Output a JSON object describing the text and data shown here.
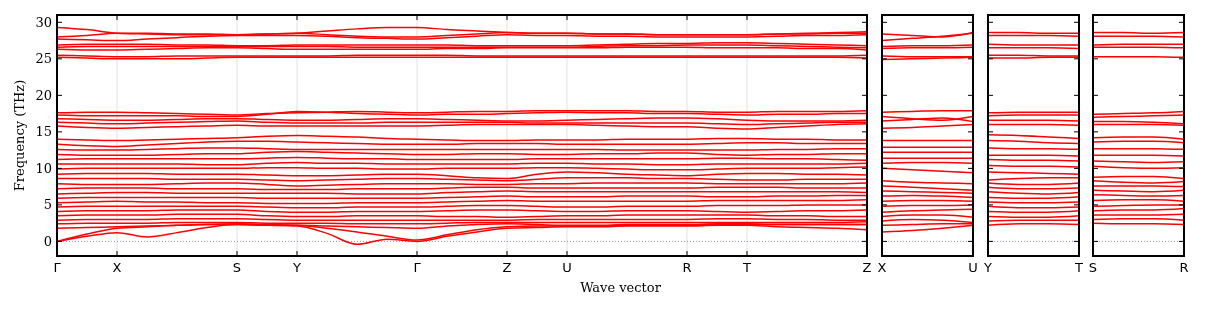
{
  "chart_data": [
    {
      "type": "line",
      "xlabel": "Wave vector",
      "ylabel": "Frequency (THz)",
      "color": "#ff0000",
      "grid": "x",
      "line_style": "solid",
      "ylim": [
        -2,
        31
      ],
      "yticks": [
        0,
        5,
        10,
        15,
        20,
        25,
        30
      ],
      "categories": [
        "Γ",
        null,
        "X",
        null,
        null,
        null,
        "S",
        null,
        "Y",
        null,
        null,
        null,
        "Γ",
        null,
        null,
        "Z",
        null,
        "U",
        null,
        null,
        null,
        "R",
        null,
        "T",
        null,
        null,
        null,
        "Z"
      ],
      "ref_lines": [
        {
          "axis": "y",
          "value": 0,
          "color": "#7777cc",
          "line_style": "dotted"
        }
      ],
      "series": [
        {
          "values": [
            29.3,
            29.0,
            28.5,
            28.4,
            28.3,
            28.3,
            28.3,
            28.4,
            28.5,
            28.8,
            29.1,
            29.3,
            29.3,
            29.0,
            28.8,
            28.6,
            28.5,
            28.5,
            28.4,
            28.4,
            28.3,
            28.3,
            28.3,
            28.3,
            28.4,
            28.5,
            28.6,
            28.7
          ]
        },
        {
          "values": [
            28.0,
            28.2,
            28.5,
            28.5,
            28.4,
            28.4,
            28.3,
            28.4,
            28.5,
            28.3,
            28.1,
            28.0,
            28.0,
            28.2,
            28.4,
            28.6,
            28.5,
            28.5,
            28.4,
            28.4,
            28.3,
            28.3,
            28.3,
            28.3,
            28.4,
            28.4,
            28.5,
            28.5
          ]
        },
        {
          "values": [
            27.7,
            27.6,
            27.5,
            27.7,
            27.9,
            28.1,
            28.2,
            28.2,
            28.2,
            28.1,
            27.9,
            27.8,
            27.7,
            27.9,
            28.1,
            28.3,
            28.2,
            28.2,
            28.1,
            28.1,
            28.0,
            28.0,
            28.0,
            28.0,
            28.1,
            28.2,
            28.2,
            28.3
          ]
        },
        {
          "values": [
            26.9,
            27.0,
            27.0,
            27.0,
            26.9,
            26.9,
            26.8,
            26.8,
            26.9,
            26.9,
            26.9,
            26.9,
            26.9,
            26.9,
            26.8,
            26.8,
            26.8,
            26.8,
            26.9,
            27.0,
            27.1,
            27.1,
            27.2,
            27.2,
            27.1,
            27.0,
            26.9,
            26.8
          ]
        },
        {
          "values": [
            26.6,
            26.7,
            26.7,
            26.7,
            26.7,
            26.7,
            26.7,
            26.7,
            26.7,
            26.7,
            26.6,
            26.6,
            26.6,
            26.6,
            26.6,
            26.6,
            26.6,
            26.6,
            26.7,
            26.8,
            26.8,
            26.9,
            26.9,
            26.9,
            26.8,
            26.7,
            26.6,
            26.5
          ]
        },
        {
          "values": [
            26.3,
            26.2,
            26.2,
            26.3,
            26.4,
            26.5,
            26.5,
            26.4,
            26.3,
            26.3,
            26.3,
            26.3,
            26.3,
            26.4,
            26.4,
            26.5,
            26.5,
            26.5,
            26.5,
            26.6,
            26.6,
            26.6,
            26.5,
            26.5,
            26.5,
            26.4,
            26.4,
            26.2
          ]
        },
        {
          "values": [
            25.5,
            25.4,
            25.3,
            25.3,
            25.4,
            25.4,
            25.4,
            25.4,
            25.4,
            25.4,
            25.5,
            25.5,
            25.5,
            25.5,
            25.4,
            25.4,
            25.4,
            25.4,
            25.4,
            25.4,
            25.4,
            25.4,
            25.4,
            25.4,
            25.4,
            25.4,
            25.4,
            25.5
          ]
        },
        {
          "values": [
            25.2,
            25.1,
            25.0,
            25.0,
            25.0,
            25.1,
            25.2,
            25.2,
            25.2,
            25.2,
            25.2,
            25.2,
            25.2,
            25.2,
            25.2,
            25.2,
            25.2,
            25.2,
            25.2,
            25.2,
            25.2,
            25.2,
            25.2,
            25.2,
            25.2,
            25.2,
            25.2,
            25.1
          ]
        },
        {
          "values": [
            17.6,
            17.7,
            17.7,
            17.6,
            17.5,
            17.4,
            17.3,
            17.5,
            17.6,
            17.7,
            17.8,
            17.7,
            17.6,
            17.7,
            17.8,
            17.8,
            17.9,
            17.9,
            17.9,
            17.9,
            17.8,
            17.8,
            17.7,
            17.7,
            17.8,
            17.8,
            17.8,
            17.9
          ]
        },
        {
          "values": [
            17.3,
            17.2,
            17.2,
            17.2,
            17.2,
            17.1,
            17.1,
            17.4,
            17.8,
            17.7,
            17.5,
            17.4,
            17.3,
            17.4,
            17.4,
            17.5,
            17.6,
            17.7,
            17.6,
            17.6,
            17.5,
            17.5,
            17.4,
            17.3,
            17.4,
            17.4,
            17.5,
            17.5
          ]
        },
        {
          "values": [
            16.8,
            16.7,
            16.6,
            16.6,
            16.7,
            16.8,
            16.8,
            16.7,
            16.6,
            16.6,
            16.7,
            16.8,
            16.8,
            16.7,
            16.6,
            16.5,
            16.5,
            16.6,
            16.7,
            16.8,
            16.9,
            16.9,
            16.8,
            16.6,
            16.5,
            16.5,
            16.5,
            16.6
          ]
        },
        {
          "values": [
            16.3,
            16.2,
            16.1,
            16.2,
            16.3,
            16.4,
            16.5,
            16.3,
            16.2,
            16.2,
            16.2,
            16.3,
            16.3,
            16.3,
            16.3,
            16.3,
            16.2,
            16.2,
            16.2,
            16.2,
            16.2,
            16.2,
            16.1,
            16.0,
            16.1,
            16.2,
            16.3,
            16.3
          ]
        },
        {
          "values": [
            15.8,
            15.6,
            15.5,
            15.6,
            15.7,
            15.8,
            15.9,
            15.8,
            15.8,
            15.8,
            15.8,
            15.8,
            15.8,
            15.9,
            16.0,
            16.0,
            16.0,
            16.0,
            15.9,
            15.8,
            15.7,
            15.7,
            15.5,
            15.4,
            15.6,
            15.8,
            16.0,
            16.1
          ]
        },
        {
          "values": [
            14.0,
            13.9,
            13.8,
            13.9,
            14.0,
            14.1,
            14.2,
            14.4,
            14.5,
            14.4,
            14.3,
            14.1,
            14.0,
            13.9,
            13.8,
            13.8,
            13.9,
            13.9,
            13.9,
            14.0,
            14.0,
            14.0,
            14.1,
            14.1,
            14.0,
            14.0,
            13.9,
            13.9
          ]
        },
        {
          "values": [
            13.3,
            13.1,
            13.0,
            13.2,
            13.4,
            13.6,
            13.7,
            13.7,
            13.6,
            13.5,
            13.4,
            13.3,
            13.3,
            13.3,
            13.4,
            13.4,
            13.4,
            13.3,
            13.3,
            13.3,
            13.3,
            13.3,
            13.4,
            13.5,
            13.5,
            13.4,
            13.4,
            13.4
          ]
        },
        {
          "values": [
            12.6,
            12.5,
            12.5,
            12.6,
            12.7,
            12.8,
            12.8,
            12.7,
            12.6,
            12.6,
            12.6,
            12.6,
            12.6,
            12.6,
            12.6,
            12.6,
            12.6,
            12.6,
            12.6,
            12.5,
            12.5,
            12.5,
            12.5,
            12.5,
            12.6,
            12.6,
            12.7,
            12.7
          ]
        },
        {
          "values": [
            11.9,
            11.8,
            11.8,
            11.8,
            11.9,
            12.0,
            12.0,
            12.2,
            12.3,
            12.2,
            12.1,
            12.0,
            11.9,
            11.9,
            12.0,
            12.0,
            11.9,
            11.9,
            12.0,
            12.0,
            12.1,
            12.1,
            11.9,
            11.8,
            11.9,
            11.9,
            12.0,
            12.0
          ]
        },
        {
          "values": [
            11.2,
            11.3,
            11.3,
            11.3,
            11.3,
            11.3,
            11.3,
            11.4,
            11.5,
            11.4,
            11.3,
            11.3,
            11.2,
            11.2,
            11.2,
            11.2,
            11.3,
            11.3,
            11.3,
            11.3,
            11.3,
            11.3,
            11.4,
            11.4,
            11.3,
            11.3,
            11.2,
            11.1
          ]
        },
        {
          "values": [
            10.6,
            10.6,
            10.6,
            10.6,
            10.6,
            10.5,
            10.5,
            10.7,
            10.8,
            10.7,
            10.7,
            10.6,
            10.6,
            10.6,
            10.6,
            10.6,
            10.7,
            10.7,
            10.6,
            10.6,
            10.5,
            10.5,
            10.6,
            10.6,
            10.6,
            10.6,
            10.6,
            10.7
          ]
        },
        {
          "values": [
            9.9,
            10.0,
            10.0,
            10.0,
            10.0,
            10.0,
            10.0,
            10.1,
            10.1,
            10.0,
            10.0,
            9.9,
            9.9,
            10.0,
            10.0,
            10.0,
            10.1,
            10.1,
            10.0,
            9.9,
            9.8,
            9.8,
            9.9,
            10.0,
            10.0,
            10.0,
            10.1,
            10.2
          ]
        },
        {
          "values": [
            9.2,
            9.3,
            9.3,
            9.3,
            9.2,
            9.2,
            9.2,
            9.1,
            9.0,
            9.0,
            9.1,
            9.2,
            9.2,
            9.0,
            8.7,
            8.6,
            9.2,
            9.5,
            9.4,
            9.2,
            9.1,
            9.0,
            9.2,
            9.3,
            9.3,
            9.2,
            9.2,
            9.1
          ]
        },
        {
          "values": [
            8.6,
            8.6,
            8.6,
            8.6,
            8.5,
            8.5,
            8.5,
            8.4,
            8.3,
            8.4,
            8.5,
            8.6,
            8.6,
            8.5,
            8.4,
            8.3,
            8.5,
            8.7,
            8.7,
            8.7,
            8.6,
            8.6,
            8.5,
            8.4,
            8.4,
            8.5,
            8.5,
            8.5
          ]
        },
        {
          "values": [
            7.9,
            7.8,
            7.8,
            7.8,
            7.9,
            8.0,
            8.0,
            7.8,
            7.6,
            7.7,
            7.8,
            7.9,
            7.9,
            7.9,
            7.8,
            7.8,
            7.9,
            7.9,
            8.0,
            8.0,
            8.0,
            8.0,
            7.9,
            7.9,
            7.9,
            7.9,
            7.9,
            8.0
          ]
        },
        {
          "values": [
            7.2,
            7.3,
            7.3,
            7.3,
            7.2,
            7.2,
            7.2,
            7.1,
            7.1,
            7.1,
            7.2,
            7.2,
            7.2,
            7.3,
            7.4,
            7.4,
            7.3,
            7.3,
            7.3,
            7.3,
            7.3,
            7.3,
            7.4,
            7.4,
            7.4,
            7.3,
            7.3,
            7.3
          ]
        },
        {
          "values": [
            6.5,
            6.6,
            6.7,
            6.7,
            6.6,
            6.6,
            6.6,
            6.6,
            6.6,
            6.6,
            6.5,
            6.5,
            6.5,
            6.7,
            6.8,
            6.9,
            6.8,
            6.8,
            6.8,
            6.8,
            6.8,
            6.8,
            6.8,
            6.8,
            6.8,
            6.8,
            6.8,
            6.7
          ]
        },
        {
          "values": [
            5.9,
            6.0,
            6.0,
            6.0,
            6.0,
            6.0,
            6.0,
            5.9,
            5.9,
            5.9,
            5.9,
            5.9,
            5.9,
            6.0,
            6.1,
            6.2,
            6.1,
            6.1,
            6.1,
            6.2,
            6.2,
            6.2,
            6.1,
            6.1,
            6.2,
            6.2,
            6.3,
            6.3
          ]
        },
        {
          "values": [
            5.3,
            5.4,
            5.5,
            5.4,
            5.4,
            5.3,
            5.3,
            5.2,
            5.2,
            5.2,
            5.3,
            5.3,
            5.3,
            5.4,
            5.5,
            5.6,
            5.5,
            5.5,
            5.5,
            5.5,
            5.5,
            5.5,
            5.6,
            5.6,
            5.6,
            5.6,
            5.6,
            5.7
          ]
        },
        {
          "values": [
            4.7,
            4.8,
            4.8,
            4.8,
            4.8,
            4.8,
            4.8,
            4.7,
            4.6,
            4.6,
            4.7,
            4.7,
            4.7,
            4.8,
            4.9,
            4.9,
            4.8,
            4.7,
            4.7,
            4.8,
            4.8,
            4.8,
            4.9,
            4.9,
            4.9,
            5.0,
            5.0,
            5.0
          ]
        },
        {
          "values": [
            4.1,
            4.2,
            4.2,
            4.2,
            4.3,
            4.3,
            4.3,
            4.1,
            4.0,
            4.0,
            4.1,
            4.1,
            4.1,
            4.2,
            4.3,
            4.3,
            4.2,
            4.1,
            4.1,
            4.2,
            4.2,
            4.2,
            4.1,
            4.0,
            4.1,
            4.2,
            4.2,
            4.3
          ]
        },
        {
          "values": [
            3.5,
            3.6,
            3.6,
            3.6,
            3.7,
            3.7,
            3.7,
            3.5,
            3.4,
            3.4,
            3.5,
            3.5,
            3.5,
            3.4,
            3.4,
            3.3,
            3.4,
            3.5,
            3.5,
            3.6,
            3.6,
            3.6,
            3.6,
            3.6,
            3.5,
            3.5,
            3.4,
            3.4
          ]
        },
        {
          "values": [
            2.9,
            3.0,
            3.0,
            3.0,
            3.1,
            3.1,
            3.1,
            3.0,
            2.9,
            2.9,
            2.9,
            2.9,
            2.9,
            2.9,
            2.9,
            2.9,
            3.0,
            3.0,
            3.0,
            3.0,
            3.0,
            3.0,
            3.1,
            3.1,
            3.0,
            3.0,
            2.9,
            2.9
          ]
        },
        {
          "values": [
            2.4,
            2.5,
            2.5,
            2.5,
            2.6,
            2.6,
            2.6,
            2.5,
            2.5,
            2.5,
            2.4,
            2.4,
            2.4,
            2.5,
            2.6,
            2.6,
            2.6,
            2.6,
            2.6,
            2.6,
            2.6,
            2.6,
            2.6,
            2.6,
            2.6,
            2.6,
            2.6,
            2.7
          ]
        },
        {
          "values": [
            1.8,
            1.9,
            2.0,
            2.1,
            2.2,
            2.3,
            2.3,
            2.2,
            2.2,
            2.1,
            2.0,
            1.9,
            1.8,
            2.1,
            2.3,
            2.4,
            2.3,
            2.2,
            2.2,
            2.3,
            2.3,
            2.3,
            2.4,
            2.4,
            2.3,
            2.3,
            2.3,
            2.3
          ]
        },
        {
          "values": [
            0,
            1.0,
            1.8,
            2.0,
            2.2,
            2.3,
            2.4,
            2.3,
            2.2,
            1.8,
            1.3,
            0.7,
            0.2,
            0.9,
            1.6,
            2.0,
            2.1,
            2.1,
            2.1,
            2.2,
            2.2,
            2.2,
            2.3,
            2.3,
            2.3,
            2.3,
            2.3,
            2.3
          ]
        },
        {
          "values": [
            0,
            0.7,
            1.2,
            0.6,
            1.2,
            1.9,
            2.3,
            2.2,
            2.1,
            1.1,
            -0.4,
            0.3,
            0,
            0.7,
            1.3,
            1.8,
            1.9,
            2.0,
            2.0,
            2.1,
            2.1,
            2.1,
            2.2,
            2.2,
            2.0,
            1.9,
            1.8,
            1.6
          ]
        }
      ]
    },
    {
      "type": "line",
      "color": "#ff0000",
      "line_style": "solid",
      "tick_labels": "x",
      "ylim": [
        -2,
        31
      ],
      "yticks": [
        0,
        5,
        10,
        15,
        20,
        25,
        30
      ],
      "categories": [
        "X",
        null,
        null,
        "U"
      ],
      "ref_lines": [
        {
          "axis": "y",
          "value": 0,
          "color": "#7777cc",
          "line_style": "dotted"
        }
      ],
      "series": [
        {
          "values": [
            28.4,
            28.2,
            28.0,
            28.6
          ]
        },
        {
          "values": [
            27.5,
            27.8,
            28.1,
            28.5
          ]
        },
        {
          "values": [
            26.7,
            26.8,
            26.8,
            26.9
          ]
        },
        {
          "values": [
            26.4,
            26.5,
            26.5,
            26.6
          ]
        },
        {
          "values": [
            25.4,
            25.3,
            25.3,
            25.3
          ]
        },
        {
          "values": [
            24.9,
            25.0,
            25.1,
            25.2
          ]
        },
        {
          "values": [
            17.7,
            17.8,
            17.9,
            17.9
          ]
        },
        {
          "values": [
            17.1,
            16.8,
            16.6,
            17.1
          ]
        },
        {
          "values": [
            16.5,
            16.7,
            16.9,
            16.4
          ]
        },
        {
          "values": [
            15.5,
            15.6,
            15.8,
            16.0
          ]
        },
        {
          "values": [
            13.8,
            13.8,
            13.8,
            13.8
          ]
        },
        {
          "values": [
            12.9,
            12.9,
            12.9,
            12.9
          ]
        },
        {
          "values": [
            12.2,
            12.2,
            12.2,
            12.2
          ]
        },
        {
          "values": [
            11.4,
            11.4,
            11.4,
            11.4
          ]
        },
        {
          "values": [
            10.7,
            10.8,
            10.8,
            10.7
          ]
        },
        {
          "values": [
            10.0,
            9.8,
            9.6,
            9.4
          ]
        },
        {
          "values": [
            8.3,
            8.1,
            8.0,
            7.9
          ]
        },
        {
          "values": [
            7.6,
            7.4,
            7.2,
            7.0
          ]
        },
        {
          "values": [
            6.9,
            6.8,
            6.7,
            6.6
          ]
        },
        {
          "values": [
            6.2,
            6.3,
            6.2,
            6.0
          ]
        },
        {
          "values": [
            5.5,
            5.6,
            5.6,
            5.5
          ]
        },
        {
          "values": [
            4.8,
            4.9,
            4.9,
            5.0
          ]
        },
        {
          "values": [
            4.0,
            4.2,
            4.3,
            4.4
          ]
        },
        {
          "values": [
            3.4,
            3.6,
            3.6,
            3.3
          ]
        },
        {
          "values": [
            2.8,
            3.0,
            2.9,
            2.6
          ]
        },
        {
          "values": [
            2.2,
            2.3,
            2.4,
            2.4
          ]
        },
        {
          "values": [
            1.3,
            1.5,
            1.8,
            2.2
          ]
        }
      ]
    },
    {
      "type": "line",
      "color": "#ff0000",
      "line_style": "solid",
      "tick_labels": "x",
      "ylim": [
        -2,
        31
      ],
      "yticks": [
        0,
        5,
        10,
        15,
        20,
        25,
        30
      ],
      "categories": [
        "Y",
        null,
        null,
        "T"
      ],
      "ref_lines": [
        {
          "axis": "y",
          "value": 0,
          "color": "#7777cc",
          "line_style": "dotted"
        }
      ],
      "series": [
        {
          "values": [
            28.6,
            28.6,
            28.5,
            28.5
          ]
        },
        {
          "values": [
            28.2,
            28.2,
            28.2,
            28.1
          ]
        },
        {
          "values": [
            27.0,
            26.9,
            26.9,
            26.9
          ]
        },
        {
          "values": [
            26.5,
            26.5,
            26.5,
            26.4
          ]
        },
        {
          "values": [
            25.5,
            25.5,
            25.4,
            25.4
          ]
        },
        {
          "values": [
            25.1,
            25.1,
            25.2,
            25.2
          ]
        },
        {
          "values": [
            17.6,
            17.7,
            17.7,
            17.7
          ]
        },
        {
          "values": [
            17.2,
            17.3,
            17.3,
            17.3
          ]
        },
        {
          "values": [
            16.6,
            16.6,
            16.6,
            16.5
          ]
        },
        {
          "values": [
            16.0,
            16.0,
            16.0,
            15.9
          ]
        },
        {
          "values": [
            14.6,
            14.5,
            14.3,
            14.1
          ]
        },
        {
          "values": [
            13.8,
            13.7,
            13.5,
            13.4
          ]
        },
        {
          "values": [
            12.8,
            12.7,
            12.7,
            12.6
          ]
        },
        {
          "values": [
            11.8,
            11.8,
            11.8,
            11.7
          ]
        },
        {
          "values": [
            11.2,
            11.1,
            11.1,
            11.0
          ]
        },
        {
          "values": [
            10.4,
            10.3,
            10.3,
            10.2
          ]
        },
        {
          "values": [
            9.5,
            9.4,
            9.3,
            9.2
          ]
        },
        {
          "values": [
            8.4,
            8.6,
            8.7,
            8.7
          ]
        },
        {
          "values": [
            8.0,
            7.8,
            7.8,
            8.0
          ]
        },
        {
          "values": [
            7.4,
            7.2,
            7.2,
            7.3
          ]
        },
        {
          "values": [
            6.8,
            6.6,
            6.5,
            6.7
          ]
        },
        {
          "values": [
            6.0,
            5.9,
            5.9,
            6.1
          ]
        },
        {
          "values": [
            5.4,
            5.3,
            5.3,
            5.4
          ]
        },
        {
          "values": [
            4.8,
            4.6,
            4.6,
            4.7
          ]
        },
        {
          "values": [
            4.1,
            4.0,
            4.0,
            4.2
          ]
        },
        {
          "values": [
            3.4,
            3.3,
            3.3,
            3.5
          ]
        },
        {
          "values": [
            2.8,
            2.9,
            2.9,
            2.9
          ]
        },
        {
          "values": [
            2.2,
            2.4,
            2.4,
            2.3
          ]
        }
      ]
    },
    {
      "type": "line",
      "color": "#ff0000",
      "line_style": "solid",
      "tick_labels": "x",
      "ylim": [
        -2,
        31
      ],
      "yticks": [
        0,
        5,
        10,
        15,
        20,
        25,
        30
      ],
      "categories": [
        "S",
        null,
        null,
        "R"
      ],
      "ref_lines": [
        {
          "axis": "y",
          "value": 0,
          "color": "#7777cc",
          "line_style": "dotted"
        }
      ],
      "series": [
        {
          "values": [
            28.6,
            28.6,
            28.5,
            28.6
          ]
        },
        {
          "values": [
            28.1,
            28.1,
            28.1,
            28.0
          ]
        },
        {
          "values": [
            26.9,
            27.0,
            27.0,
            27.0
          ]
        },
        {
          "values": [
            26.6,
            26.6,
            26.6,
            26.5
          ]
        },
        {
          "values": [
            25.3,
            25.3,
            25.3,
            25.2
          ]
        },
        {
          "values": [
            17.4,
            17.5,
            17.6,
            17.8
          ]
        },
        {
          "values": [
            17.0,
            17.1,
            17.2,
            17.3
          ]
        },
        {
          "values": [
            16.4,
            16.4,
            16.3,
            16.1
          ]
        },
        {
          "values": [
            16.0,
            16.0,
            16.0,
            15.9
          ]
        },
        {
          "values": [
            14.2,
            14.3,
            14.3,
            14.0
          ]
        },
        {
          "values": [
            13.6,
            13.7,
            13.7,
            13.5
          ]
        },
        {
          "values": [
            12.7,
            12.7,
            12.7,
            12.6
          ]
        },
        {
          "values": [
            11.8,
            11.8,
            11.8,
            11.7
          ]
        },
        {
          "values": [
            11.0,
            10.9,
            10.8,
            10.9
          ]
        },
        {
          "values": [
            10.3,
            10.1,
            10.0,
            10.1
          ]
        },
        {
          "values": [
            8.8,
            8.9,
            8.9,
            8.6
          ]
        },
        {
          "values": [
            8.3,
            8.1,
            8.0,
            8.2
          ]
        },
        {
          "values": [
            7.6,
            7.6,
            7.6,
            7.5
          ]
        },
        {
          "values": [
            7.0,
            6.9,
            6.8,
            7.0
          ]
        },
        {
          "values": [
            6.4,
            6.3,
            6.2,
            6.3
          ]
        },
        {
          "values": [
            5.6,
            5.7,
            5.7,
            5.5
          ]
        },
        {
          "values": [
            4.8,
            4.9,
            5.0,
            5.0
          ]
        },
        {
          "values": [
            4.2,
            4.3,
            4.3,
            4.5
          ]
        },
        {
          "values": [
            3.6,
            3.6,
            3.6,
            3.7
          ]
        },
        {
          "values": [
            3.0,
            3.1,
            3.1,
            2.9
          ]
        },
        {
          "values": [
            2.5,
            2.4,
            2.4,
            2.3
          ]
        }
      ]
    }
  ]
}
